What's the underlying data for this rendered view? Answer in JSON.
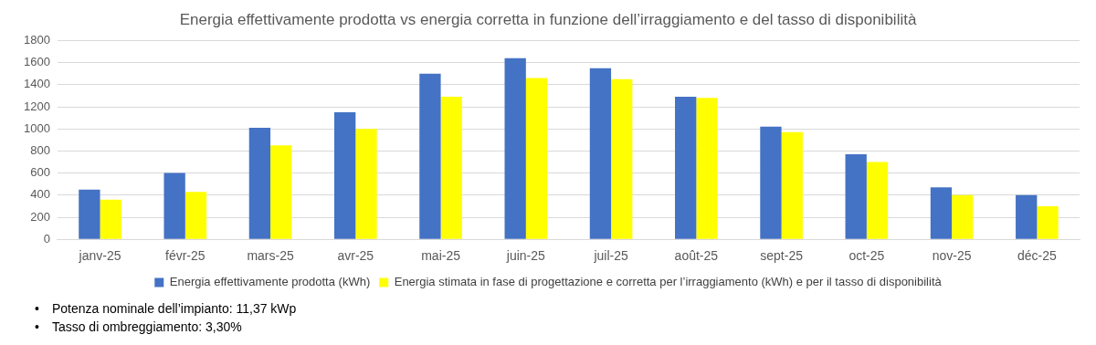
{
  "chart_data": {
    "type": "bar",
    "title": "Energia effettivamente prodotta vs energia corretta in funzione dell’irraggiamento e del tasso di disponibilità",
    "categories": [
      "janv-25",
      "févr-25",
      "mars-25",
      "avr-25",
      "mai-25",
      "juin-25",
      "juil-25",
      "août-25",
      "sept-25",
      "oct-25",
      "nov-25",
      "déc-25"
    ],
    "series": [
      {
        "name": "Energia effettivamente prodotta (kWh)",
        "color": "#4472c4",
        "values": [
          450,
          600,
          1010,
          1150,
          1500,
          1640,
          1550,
          1290,
          1020,
          770,
          470,
          400
        ]
      },
      {
        "name": "Energia stimata in fase di progettazione e corretta per l’irraggiamento (kWh) e per il tasso di disponibilità",
        "color": "#ffff00",
        "values": [
          360,
          430,
          850,
          1000,
          1290,
          1460,
          1450,
          1280,
          970,
          700,
          400,
          300
        ]
      }
    ],
    "ylim": [
      0,
      1800
    ],
    "yticks": [
      0,
      200,
      400,
      600,
      800,
      1000,
      1200,
      1400,
      1600,
      1800
    ],
    "grid": "y",
    "legend": "bottom",
    "annotations": [
      "• Potenza nominale dell’impianto: 11,37 kWp",
      "• Tasso di ombreggiamento: 3,30%"
    ]
  }
}
